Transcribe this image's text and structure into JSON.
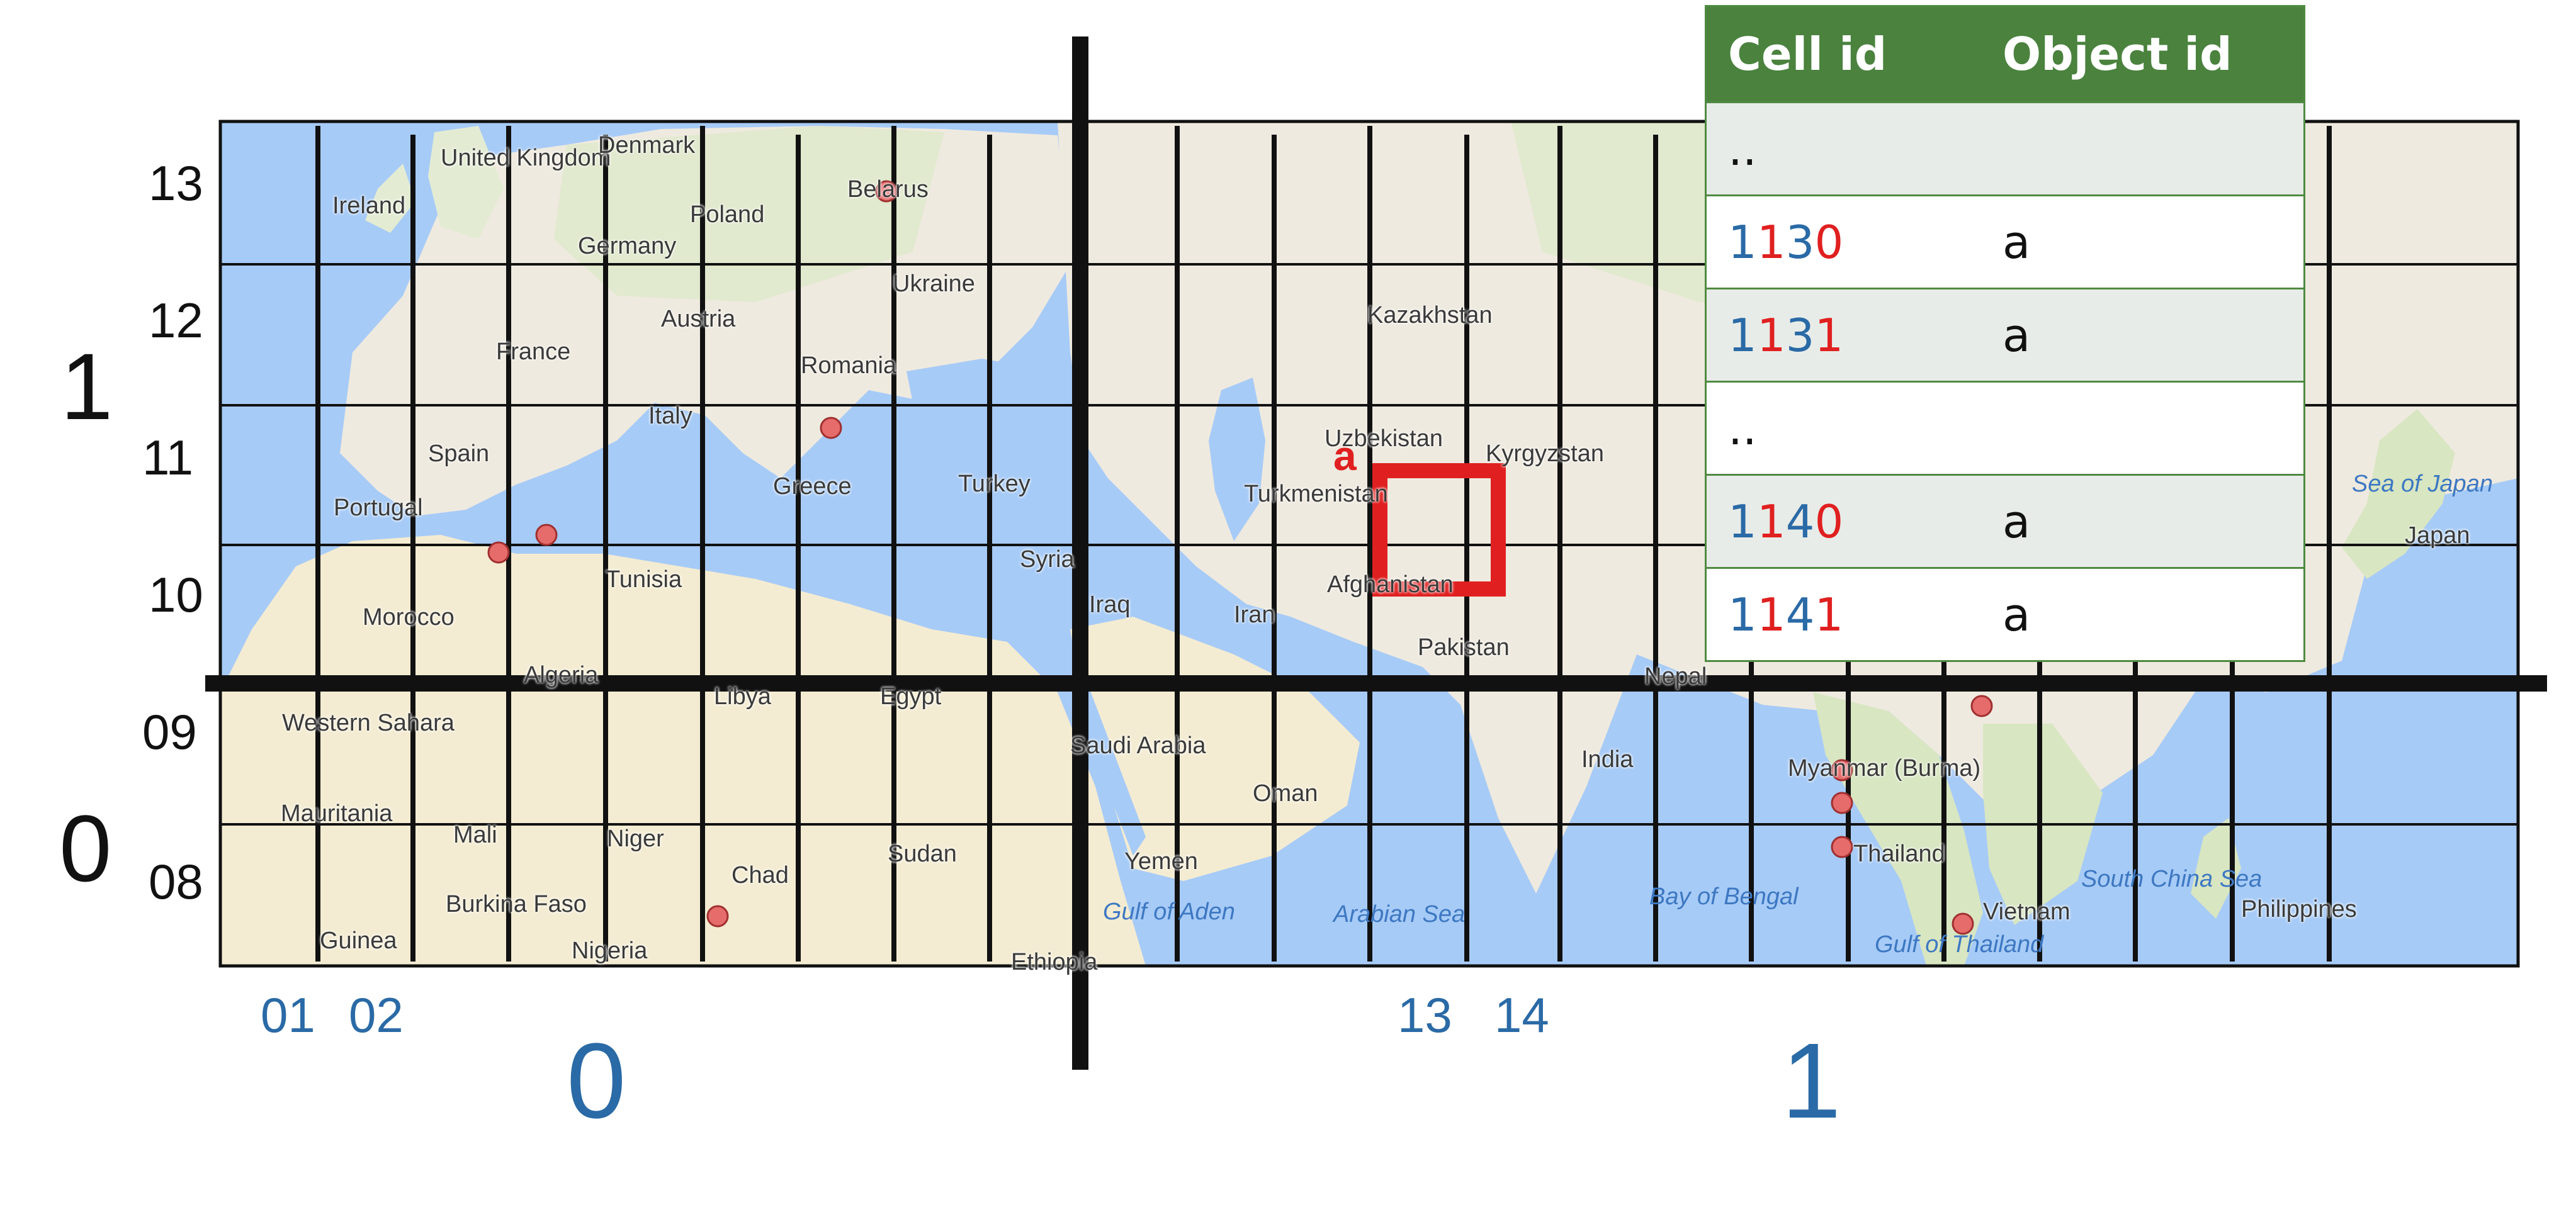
{
  "row_labels": [
    {
      "text": "13",
      "name": "row-label-13"
    },
    {
      "text": "12",
      "name": "row-label-12"
    },
    {
      "text": "11",
      "name": "row-label-11"
    },
    {
      "text": "10",
      "name": "row-label-10"
    },
    {
      "text": "09",
      "name": "row-label-09"
    },
    {
      "text": "08",
      "name": "row-label-08"
    }
  ],
  "row_halves": {
    "top": "1",
    "bottom": "0"
  },
  "col_labels": [
    {
      "text": "01",
      "name": "col-label-01"
    },
    {
      "text": "02",
      "name": "col-label-02"
    },
    {
      "text": "13",
      "name": "col-label-13"
    },
    {
      "text": "14",
      "name": "col-label-14"
    }
  ],
  "col_halves": {
    "left": "0",
    "right": "1"
  },
  "quadrant_label": {
    "first": "1",
    "second": "1"
  },
  "object": {
    "label": "a",
    "color": "#e02020"
  },
  "table": {
    "headers": [
      "Cell id",
      "Object id"
    ],
    "rows": [
      {
        "cell": "..",
        "object": "",
        "shaded": true
      },
      {
        "cell_prefix": "1",
        "cell_mid": "1",
        "cell_suffix": "30",
        "object": "a",
        "shaded": false
      },
      {
        "cell_prefix": "1",
        "cell_mid": "1",
        "cell_suffix": "31",
        "object": "a",
        "shaded": true
      },
      {
        "cell": "..",
        "object": "",
        "shaded": false
      },
      {
        "cell_prefix": "1",
        "cell_mid": "1",
        "cell_suffix": "40",
        "object": "a",
        "shaded": true
      },
      {
        "cell_prefix": "1",
        "cell_mid": "1",
        "cell_suffix": "41",
        "object": "a",
        "shaded": false
      }
    ],
    "header_color": "#4a823e"
  },
  "map_places": [
    "United Kingdom",
    "Ireland",
    "Denmark",
    "Belarus",
    "Poland",
    "Germany",
    "Ukraine",
    "Austria",
    "France",
    "Romania",
    "Kazakhstan",
    "Italy",
    "Spain",
    "Uzbekistan",
    "Kyrgyzstan",
    "Portugal",
    "Greece",
    "Turkey",
    "Turkmenistan",
    "Syria",
    "Tunisia",
    "Iraq",
    "Iran",
    "Afghanistan",
    "Morocco",
    "Algeria",
    "Libya",
    "Egypt",
    "Pakistan",
    "Nepal",
    "Western Sahara",
    "Saudi Arabia",
    "India",
    "Myanmar (Burma)",
    "Mauritania",
    "Oman",
    "Mali",
    "Niger",
    "Sudan",
    "Chad",
    "Yemen",
    "Thailand",
    "Burkina Faso",
    "Guinea",
    "Nigeria",
    "Ethiopia",
    "Gulf of Aden",
    "Arabian Sea",
    "Bay of Bengal",
    "Vietnam",
    "Gulf of Thailand",
    "South China Sea",
    "Philippines",
    "Japan",
    "Sea of Japan"
  ],
  "colors": {
    "land": "#efeadf",
    "desert": "#f4ecd2",
    "green": "#d8e6c2",
    "water": "#a7cbf7",
    "grid": "#111111",
    "accent_blue": "#2a6aa6",
    "accent_red": "#e02020"
  }
}
